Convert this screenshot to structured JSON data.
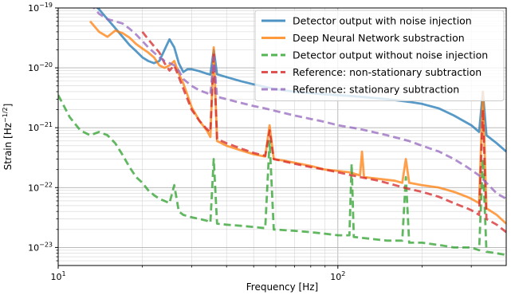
{
  "chart_data": {
    "type": "line",
    "xlabel": "Frequency [Hz]",
    "ylabel": "Strain [Hz",
    "ylabel_sup": "−1/2",
    "ylabel_close": "]",
    "xscale": "log",
    "yscale": "log",
    "xlim": [
      10,
      400
    ],
    "ylim": [
      5e-24,
      1e-19
    ],
    "grid": true,
    "legend_position": "top-right",
    "x_ticks": [
      {
        "value": 10,
        "base": "10",
        "exp": "1"
      },
      {
        "value": 100,
        "base": "10",
        "exp": "2"
      }
    ],
    "y_ticks": [
      {
        "value": 1e-23,
        "base": "10",
        "exp": "−23"
      },
      {
        "value": 1e-22,
        "base": "10",
        "exp": "−22"
      },
      {
        "value": 1e-21,
        "base": "10",
        "exp": "−21"
      },
      {
        "value": 1e-20,
        "base": "10",
        "exp": "−20"
      },
      {
        "value": 1e-19,
        "base": "10",
        "exp": "−19"
      }
    ],
    "series": [
      {
        "name": "Detector output with noise injection",
        "color": "#1f77b4",
        "dash": false,
        "points": [
          [
            13,
            1.3e-19
          ],
          [
            14,
            9.5e-20
          ],
          [
            15,
            6.5e-20
          ],
          [
            16,
            4.6e-20
          ],
          [
            17,
            3.3e-20
          ],
          [
            18,
            2.4e-20
          ],
          [
            19,
            1.9e-20
          ],
          [
            20,
            1.5e-20
          ],
          [
            21,
            1.3e-20
          ],
          [
            22,
            1.2e-20
          ],
          [
            23,
            1.3e-20
          ],
          [
            24,
            2e-20
          ],
          [
            25,
            3e-20
          ],
          [
            26,
            2.2e-20
          ],
          [
            27,
            1.2e-20
          ],
          [
            28,
            8.5e-21
          ],
          [
            29,
            9.5e-21
          ],
          [
            30,
            9.5e-21
          ],
          [
            32,
            8.8e-21
          ],
          [
            34,
            8e-21
          ],
          [
            35,
            7.7e-21
          ],
          [
            36,
            2e-20
          ],
          [
            37,
            7.8e-21
          ],
          [
            40,
            7e-21
          ],
          [
            45,
            6e-21
          ],
          [
            50,
            5.3e-21
          ],
          [
            55,
            4.8e-21
          ],
          [
            60,
            4.4e-21
          ],
          [
            70,
            4e-21
          ],
          [
            80,
            3.8e-21
          ],
          [
            90,
            3.6e-21
          ],
          [
            100,
            3.5e-21
          ],
          [
            120,
            3.3e-21
          ],
          [
            150,
            3e-21
          ],
          [
            180,
            2.7e-21
          ],
          [
            200,
            2.5e-21
          ],
          [
            230,
            2.1e-21
          ],
          [
            260,
            1.6e-21
          ],
          [
            300,
            1.1e-21
          ],
          [
            320,
            8.5e-22
          ],
          [
            330,
            4e-21
          ],
          [
            340,
            7.5e-22
          ],
          [
            370,
            5.5e-22
          ],
          [
            400,
            4e-22
          ]
        ]
      },
      {
        "name": "Deep Neural Network substraction",
        "color": "#ff7f0e",
        "dash": false,
        "points": [
          [
            13,
            6e-20
          ],
          [
            14,
            4e-20
          ],
          [
            15,
            3.3e-20
          ],
          [
            16,
            4.2e-20
          ],
          [
            17,
            3.8e-20
          ],
          [
            18,
            3.2e-20
          ],
          [
            19,
            2.5e-20
          ],
          [
            20,
            2.1e-20
          ],
          [
            21,
            1.8e-20
          ],
          [
            22,
            1.5e-20
          ],
          [
            23,
            1.1e-20
          ],
          [
            24,
            1e-20
          ],
          [
            25,
            1.1e-20
          ],
          [
            26,
            1.3e-20
          ],
          [
            27,
            8e-21
          ],
          [
            28,
            5.5e-21
          ],
          [
            29,
            3.5e-21
          ],
          [
            30,
            2.2e-21
          ],
          [
            32,
            1.3e-21
          ],
          [
            34,
            9e-22
          ],
          [
            35,
            7e-22
          ],
          [
            36,
            2.2e-20
          ],
          [
            37,
            6e-22
          ],
          [
            40,
            5e-22
          ],
          [
            45,
            4.2e-22
          ],
          [
            50,
            3.6e-22
          ],
          [
            55,
            3.3e-22
          ],
          [
            57,
            1.1e-21
          ],
          [
            59,
            3e-22
          ],
          [
            65,
            2.8e-22
          ],
          [
            70,
            2.6e-22
          ],
          [
            80,
            2.3e-22
          ],
          [
            90,
            2e-22
          ],
          [
            100,
            1.9e-22
          ],
          [
            110,
            1.8e-22
          ],
          [
            120,
            1.6e-22
          ],
          [
            122,
            4e-22
          ],
          [
            124,
            1.5e-22
          ],
          [
            140,
            1.4e-22
          ],
          [
            160,
            1.3e-22
          ],
          [
            170,
            1.2e-22
          ],
          [
            175,
            3e-22
          ],
          [
            180,
            1.2e-22
          ],
          [
            200,
            1.1e-22
          ],
          [
            230,
            1e-22
          ],
          [
            260,
            8.5e-23
          ],
          [
            290,
            7e-23
          ],
          [
            300,
            6.5e-23
          ],
          [
            320,
            5.5e-23
          ],
          [
            330,
            4e-21
          ],
          [
            340,
            4.5e-23
          ],
          [
            370,
            3.5e-23
          ],
          [
            400,
            2.5e-23
          ]
        ]
      },
      {
        "name": "Detector output without noise injection",
        "color": "#2ca02c",
        "dash": true,
        "points": [
          [
            10,
            3.5e-21
          ],
          [
            11,
            1.5e-21
          ],
          [
            12,
            9e-22
          ],
          [
            13,
            7.5e-22
          ],
          [
            14,
            8.5e-22
          ],
          [
            15,
            7.5e-22
          ],
          [
            16,
            5.5e-22
          ],
          [
            17,
            3.5e-22
          ],
          [
            18,
            2.2e-22
          ],
          [
            19,
            1.5e-22
          ],
          [
            20,
            1.2e-22
          ],
          [
            21,
            9e-23
          ],
          [
            22,
            7.5e-23
          ],
          [
            23,
            6.5e-23
          ],
          [
            24,
            6e-23
          ],
          [
            25,
            5.5e-23
          ],
          [
            26,
            1.1e-22
          ],
          [
            27,
            4e-23
          ],
          [
            28,
            3.5e-23
          ],
          [
            30,
            3.2e-23
          ],
          [
            32,
            3e-23
          ],
          [
            34,
            2.8e-23
          ],
          [
            35,
            2.6e-23
          ],
          [
            36,
            3e-22
          ],
          [
            37,
            2.5e-23
          ],
          [
            40,
            2.4e-23
          ],
          [
            45,
            2.3e-23
          ],
          [
            50,
            2.2e-23
          ],
          [
            55,
            2.1e-23
          ],
          [
            57,
            6e-22
          ],
          [
            59,
            2e-23
          ],
          [
            70,
            1.9e-23
          ],
          [
            80,
            1.8e-23
          ],
          [
            90,
            1.7e-23
          ],
          [
            100,
            1.6e-23
          ],
          [
            110,
            1.6e-23
          ],
          [
            112,
            2.5e-22
          ],
          [
            114,
            1.5e-23
          ],
          [
            130,
            1.4e-23
          ],
          [
            150,
            1.3e-23
          ],
          [
            170,
            1.3e-23
          ],
          [
            175,
            1.5e-22
          ],
          [
            180,
            1.2e-23
          ],
          [
            200,
            1.2e-23
          ],
          [
            230,
            1.1e-23
          ],
          [
            260,
            1e-23
          ],
          [
            290,
            1e-23
          ],
          [
            300,
            1e-23
          ],
          [
            320,
            9e-24
          ],
          [
            330,
            3e-22
          ],
          [
            340,
            8.5e-24
          ],
          [
            370,
            8e-24
          ],
          [
            400,
            7.5e-24
          ]
        ]
      },
      {
        "name": "Reference: non-stationary subtraction",
        "color": "#d62728",
        "dash": true,
        "points": [
          [
            20,
            4e-20
          ],
          [
            21,
            3e-20
          ],
          [
            22,
            2.3e-20
          ],
          [
            23,
            1.8e-20
          ],
          [
            24,
            1.2e-20
          ],
          [
            25,
            9e-21
          ],
          [
            26,
            1.1e-20
          ],
          [
            27,
            7e-21
          ],
          [
            28,
            4.5e-21
          ],
          [
            29,
            3e-21
          ],
          [
            30,
            2e-21
          ],
          [
            32,
            1.3e-21
          ],
          [
            34,
            9.5e-22
          ],
          [
            35,
            8.5e-22
          ],
          [
            36,
            1.8e-20
          ],
          [
            37,
            6.5e-22
          ],
          [
            40,
            5.5e-22
          ],
          [
            45,
            4.5e-22
          ],
          [
            50,
            3.8e-22
          ],
          [
            55,
            3.4e-22
          ],
          [
            57,
            9e-22
          ],
          [
            59,
            3e-22
          ],
          [
            65,
            2.7e-22
          ],
          [
            70,
            2.5e-22
          ],
          [
            80,
            2.2e-22
          ],
          [
            90,
            2e-22
          ],
          [
            100,
            1.8e-22
          ],
          [
            120,
            1.5e-22
          ],
          [
            140,
            1.3e-22
          ],
          [
            160,
            1.1e-22
          ],
          [
            180,
            9.5e-23
          ],
          [
            200,
            8.5e-23
          ],
          [
            230,
            7e-23
          ],
          [
            260,
            5.5e-23
          ],
          [
            290,
            4.5e-23
          ],
          [
            300,
            4.2e-23
          ],
          [
            320,
            3.5e-23
          ],
          [
            330,
            2e-21
          ],
          [
            340,
            3e-23
          ],
          [
            370,
            2.4e-23
          ],
          [
            400,
            1.8e-23
          ]
        ]
      },
      {
        "name": "Reference: stationary subtraction",
        "color": "#9467bd",
        "dash": true,
        "points": [
          [
            13,
            1.2e-19
          ],
          [
            14,
            8e-20
          ],
          [
            15,
            6.5e-20
          ],
          [
            16,
            6e-20
          ],
          [
            17,
            5.5e-20
          ],
          [
            18,
            4.5e-20
          ],
          [
            19,
            3.6e-20
          ],
          [
            20,
            2.8e-20
          ],
          [
            21,
            2.2e-20
          ],
          [
            22,
            1.8e-20
          ],
          [
            23,
            1.5e-20
          ],
          [
            24,
            1.3e-20
          ],
          [
            25,
            1.2e-20
          ],
          [
            26,
            1.1e-20
          ],
          [
            27,
            9e-21
          ],
          [
            28,
            6.5e-21
          ],
          [
            30,
            5e-21
          ],
          [
            32,
            4.2e-21
          ],
          [
            34,
            3.8e-21
          ],
          [
            35,
            3.5e-21
          ],
          [
            36,
            1.5e-20
          ],
          [
            37,
            3.3e-21
          ],
          [
            40,
            3e-21
          ],
          [
            45,
            2.6e-21
          ],
          [
            50,
            2.3e-21
          ],
          [
            55,
            2.1e-21
          ],
          [
            60,
            1.9e-21
          ],
          [
            70,
            1.6e-21
          ],
          [
            80,
            1.4e-21
          ],
          [
            90,
            1.25e-21
          ],
          [
            100,
            1.1e-21
          ],
          [
            120,
            9.5e-22
          ],
          [
            150,
            7.5e-22
          ],
          [
            180,
            6e-22
          ],
          [
            200,
            5e-22
          ],
          [
            230,
            4e-22
          ],
          [
            260,
            3e-22
          ],
          [
            290,
            2.2e-22
          ],
          [
            320,
            1.6e-22
          ],
          [
            340,
            1.2e-22
          ],
          [
            370,
            8e-23
          ],
          [
            400,
            6.5e-23
          ]
        ]
      }
    ]
  }
}
